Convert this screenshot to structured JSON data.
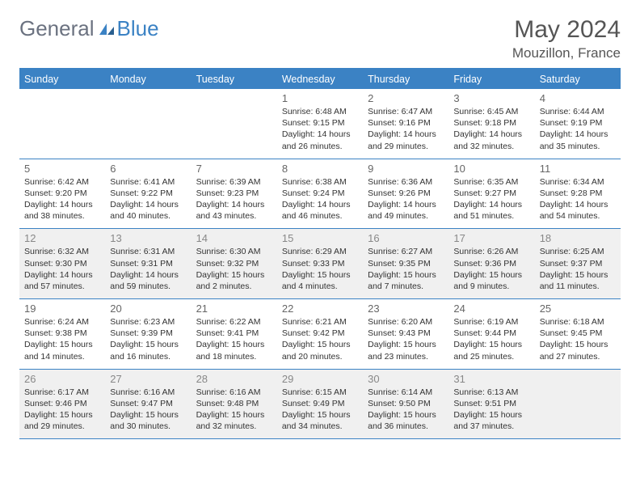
{
  "brand": {
    "part1": "General",
    "part2": "Blue"
  },
  "title": "May 2024",
  "location": "Mouzillon, France",
  "colors": {
    "accent": "#3b82c4",
    "header_text": "#ffffff",
    "alt_bg": "#f0f0f0",
    "text": "#333333",
    "muted": "#666666"
  },
  "day_names": [
    "Sunday",
    "Monday",
    "Tuesday",
    "Wednesday",
    "Thursday",
    "Friday",
    "Saturday"
  ],
  "weeks": [
    [
      {
        "date": "",
        "sunrise": "",
        "sunset": "",
        "daylight": "",
        "alt": false
      },
      {
        "date": "",
        "sunrise": "",
        "sunset": "",
        "daylight": "",
        "alt": false
      },
      {
        "date": "",
        "sunrise": "",
        "sunset": "",
        "daylight": "",
        "alt": false
      },
      {
        "date": "1",
        "sunrise": "Sunrise: 6:48 AM",
        "sunset": "Sunset: 9:15 PM",
        "daylight": "Daylight: 14 hours and 26 minutes.",
        "alt": false
      },
      {
        "date": "2",
        "sunrise": "Sunrise: 6:47 AM",
        "sunset": "Sunset: 9:16 PM",
        "daylight": "Daylight: 14 hours and 29 minutes.",
        "alt": false
      },
      {
        "date": "3",
        "sunrise": "Sunrise: 6:45 AM",
        "sunset": "Sunset: 9:18 PM",
        "daylight": "Daylight: 14 hours and 32 minutes.",
        "alt": false
      },
      {
        "date": "4",
        "sunrise": "Sunrise: 6:44 AM",
        "sunset": "Sunset: 9:19 PM",
        "daylight": "Daylight: 14 hours and 35 minutes.",
        "alt": false
      }
    ],
    [
      {
        "date": "5",
        "sunrise": "Sunrise: 6:42 AM",
        "sunset": "Sunset: 9:20 PM",
        "daylight": "Daylight: 14 hours and 38 minutes.",
        "alt": false
      },
      {
        "date": "6",
        "sunrise": "Sunrise: 6:41 AM",
        "sunset": "Sunset: 9:22 PM",
        "daylight": "Daylight: 14 hours and 40 minutes.",
        "alt": false
      },
      {
        "date": "7",
        "sunrise": "Sunrise: 6:39 AM",
        "sunset": "Sunset: 9:23 PM",
        "daylight": "Daylight: 14 hours and 43 minutes.",
        "alt": false
      },
      {
        "date": "8",
        "sunrise": "Sunrise: 6:38 AM",
        "sunset": "Sunset: 9:24 PM",
        "daylight": "Daylight: 14 hours and 46 minutes.",
        "alt": false
      },
      {
        "date": "9",
        "sunrise": "Sunrise: 6:36 AM",
        "sunset": "Sunset: 9:26 PM",
        "daylight": "Daylight: 14 hours and 49 minutes.",
        "alt": false
      },
      {
        "date": "10",
        "sunrise": "Sunrise: 6:35 AM",
        "sunset": "Sunset: 9:27 PM",
        "daylight": "Daylight: 14 hours and 51 minutes.",
        "alt": false
      },
      {
        "date": "11",
        "sunrise": "Sunrise: 6:34 AM",
        "sunset": "Sunset: 9:28 PM",
        "daylight": "Daylight: 14 hours and 54 minutes.",
        "alt": false
      }
    ],
    [
      {
        "date": "12",
        "sunrise": "Sunrise: 6:32 AM",
        "sunset": "Sunset: 9:30 PM",
        "daylight": "Daylight: 14 hours and 57 minutes.",
        "alt": true
      },
      {
        "date": "13",
        "sunrise": "Sunrise: 6:31 AM",
        "sunset": "Sunset: 9:31 PM",
        "daylight": "Daylight: 14 hours and 59 minutes.",
        "alt": true
      },
      {
        "date": "14",
        "sunrise": "Sunrise: 6:30 AM",
        "sunset": "Sunset: 9:32 PM",
        "daylight": "Daylight: 15 hours and 2 minutes.",
        "alt": true
      },
      {
        "date": "15",
        "sunrise": "Sunrise: 6:29 AM",
        "sunset": "Sunset: 9:33 PM",
        "daylight": "Daylight: 15 hours and 4 minutes.",
        "alt": true
      },
      {
        "date": "16",
        "sunrise": "Sunrise: 6:27 AM",
        "sunset": "Sunset: 9:35 PM",
        "daylight": "Daylight: 15 hours and 7 minutes.",
        "alt": true
      },
      {
        "date": "17",
        "sunrise": "Sunrise: 6:26 AM",
        "sunset": "Sunset: 9:36 PM",
        "daylight": "Daylight: 15 hours and 9 minutes.",
        "alt": true
      },
      {
        "date": "18",
        "sunrise": "Sunrise: 6:25 AM",
        "sunset": "Sunset: 9:37 PM",
        "daylight": "Daylight: 15 hours and 11 minutes.",
        "alt": true
      }
    ],
    [
      {
        "date": "19",
        "sunrise": "Sunrise: 6:24 AM",
        "sunset": "Sunset: 9:38 PM",
        "daylight": "Daylight: 15 hours and 14 minutes.",
        "alt": false
      },
      {
        "date": "20",
        "sunrise": "Sunrise: 6:23 AM",
        "sunset": "Sunset: 9:39 PM",
        "daylight": "Daylight: 15 hours and 16 minutes.",
        "alt": false
      },
      {
        "date": "21",
        "sunrise": "Sunrise: 6:22 AM",
        "sunset": "Sunset: 9:41 PM",
        "daylight": "Daylight: 15 hours and 18 minutes.",
        "alt": false
      },
      {
        "date": "22",
        "sunrise": "Sunrise: 6:21 AM",
        "sunset": "Sunset: 9:42 PM",
        "daylight": "Daylight: 15 hours and 20 minutes.",
        "alt": false
      },
      {
        "date": "23",
        "sunrise": "Sunrise: 6:20 AM",
        "sunset": "Sunset: 9:43 PM",
        "daylight": "Daylight: 15 hours and 23 minutes.",
        "alt": false
      },
      {
        "date": "24",
        "sunrise": "Sunrise: 6:19 AM",
        "sunset": "Sunset: 9:44 PM",
        "daylight": "Daylight: 15 hours and 25 minutes.",
        "alt": false
      },
      {
        "date": "25",
        "sunrise": "Sunrise: 6:18 AM",
        "sunset": "Sunset: 9:45 PM",
        "daylight": "Daylight: 15 hours and 27 minutes.",
        "alt": false
      }
    ],
    [
      {
        "date": "26",
        "sunrise": "Sunrise: 6:17 AM",
        "sunset": "Sunset: 9:46 PM",
        "daylight": "Daylight: 15 hours and 29 minutes.",
        "alt": true
      },
      {
        "date": "27",
        "sunrise": "Sunrise: 6:16 AM",
        "sunset": "Sunset: 9:47 PM",
        "daylight": "Daylight: 15 hours and 30 minutes.",
        "alt": true
      },
      {
        "date": "28",
        "sunrise": "Sunrise: 6:16 AM",
        "sunset": "Sunset: 9:48 PM",
        "daylight": "Daylight: 15 hours and 32 minutes.",
        "alt": true
      },
      {
        "date": "29",
        "sunrise": "Sunrise: 6:15 AM",
        "sunset": "Sunset: 9:49 PM",
        "daylight": "Daylight: 15 hours and 34 minutes.",
        "alt": true
      },
      {
        "date": "30",
        "sunrise": "Sunrise: 6:14 AM",
        "sunset": "Sunset: 9:50 PM",
        "daylight": "Daylight: 15 hours and 36 minutes.",
        "alt": true
      },
      {
        "date": "31",
        "sunrise": "Sunrise: 6:13 AM",
        "sunset": "Sunset: 9:51 PM",
        "daylight": "Daylight: 15 hours and 37 minutes.",
        "alt": true
      },
      {
        "date": "",
        "sunrise": "",
        "sunset": "",
        "daylight": "",
        "alt": true
      }
    ]
  ]
}
